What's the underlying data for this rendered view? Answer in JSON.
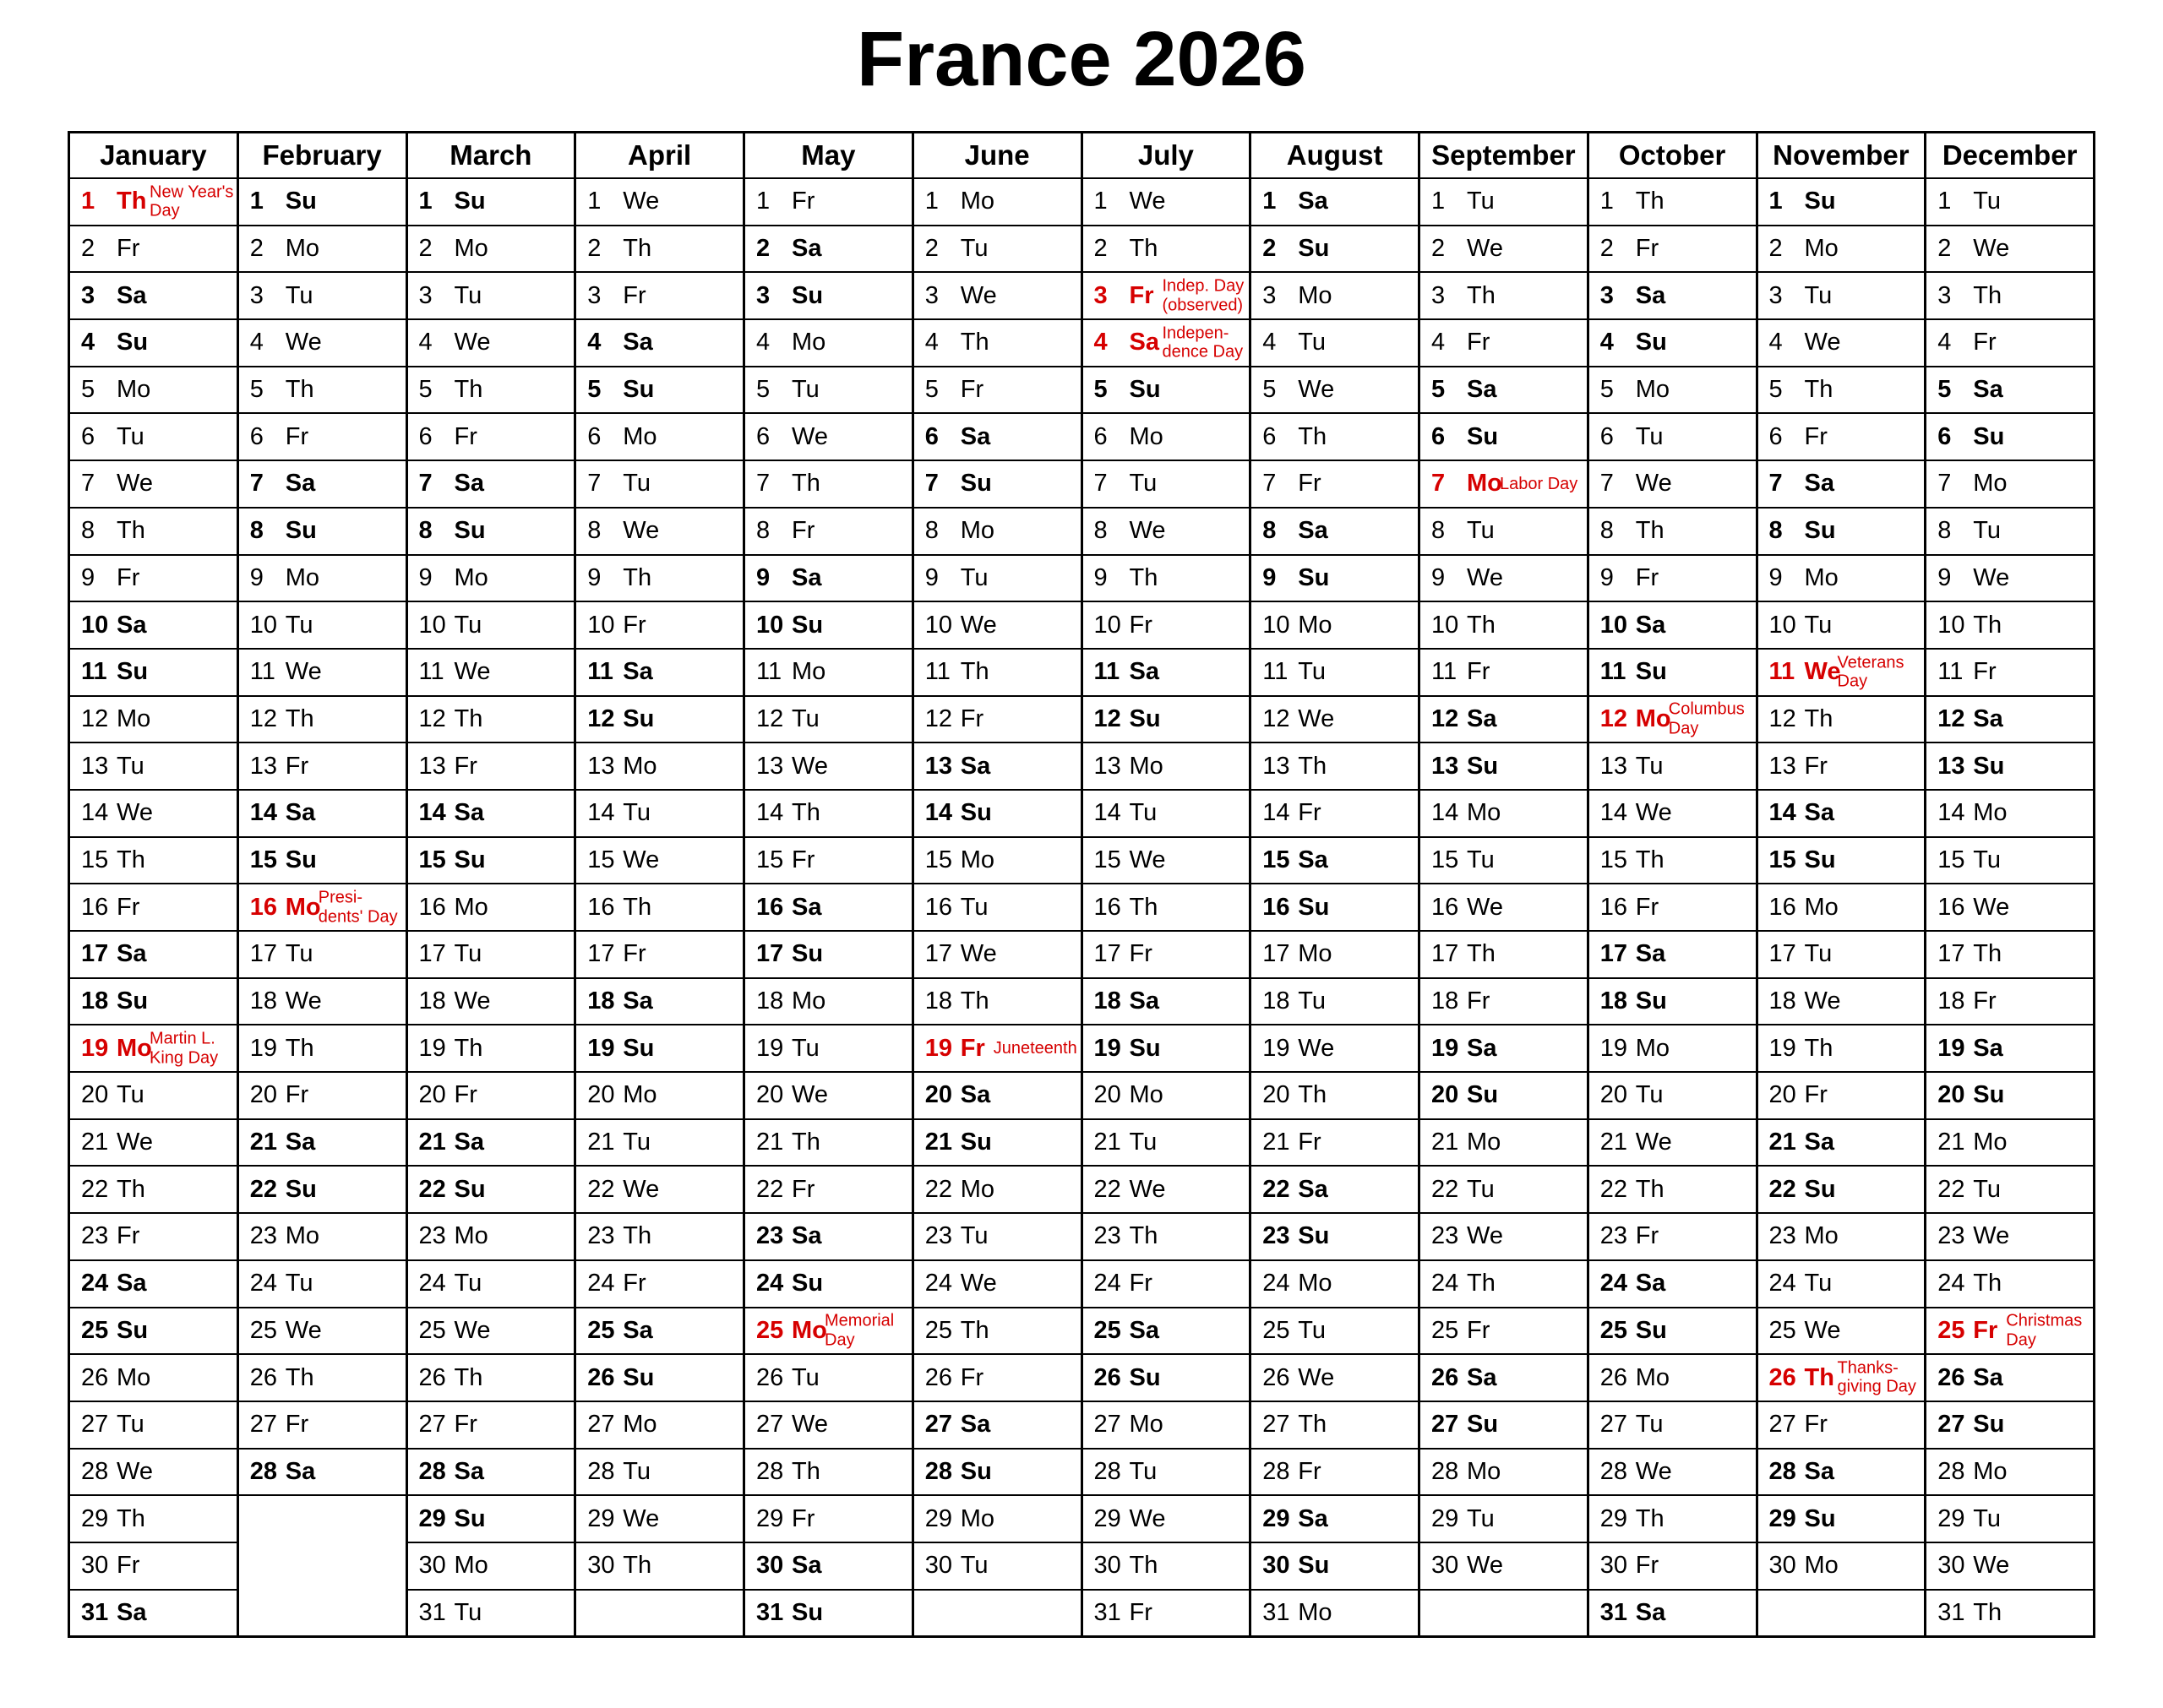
{
  "title": "France 2026",
  "colors": {
    "saturday_bg": "#FCFCCE",
    "sunday_bg": "#F9C389",
    "holiday_bg": "#FBD1D1",
    "holiday_text": "#D60000",
    "filler_bg": "#E1E1E1",
    "border": "#000000",
    "text": "#000000"
  },
  "months": [
    {
      "name": "January",
      "days": [
        "Th",
        "Fr",
        "Sa",
        "Su",
        "Mo",
        "Tu",
        "We",
        "Th",
        "Fr",
        "Sa",
        "Su",
        "Mo",
        "Tu",
        "We",
        "Th",
        "Fr",
        "Sa",
        "Su",
        "Mo",
        "Tu",
        "We",
        "Th",
        "Fr",
        "Sa",
        "Su",
        "Mo",
        "Tu",
        "We",
        "Th",
        "Fr",
        "Sa"
      ],
      "holidays": {
        "1": [
          "New Year's",
          "Day"
        ],
        "19": [
          "Martin L.",
          "King Day"
        ]
      }
    },
    {
      "name": "February",
      "days": [
        "Su",
        "Mo",
        "Tu",
        "We",
        "Th",
        "Fr",
        "Sa",
        "Su",
        "Mo",
        "Tu",
        "We",
        "Th",
        "Fr",
        "Sa",
        "Su",
        "Mo",
        "Tu",
        "We",
        "Th",
        "Fr",
        "Sa",
        "Su",
        "Mo",
        "Tu",
        "We",
        "Th",
        "Fr",
        "Sa"
      ],
      "holidays": {
        "16": [
          "Presi-",
          "dents' Day"
        ]
      }
    },
    {
      "name": "March",
      "days": [
        "Su",
        "Mo",
        "Tu",
        "We",
        "Th",
        "Fr",
        "Sa",
        "Su",
        "Mo",
        "Tu",
        "We",
        "Th",
        "Fr",
        "Sa",
        "Su",
        "Mo",
        "Tu",
        "We",
        "Th",
        "Fr",
        "Sa",
        "Su",
        "Mo",
        "Tu",
        "We",
        "Th",
        "Fr",
        "Sa",
        "Su",
        "Mo",
        "Tu"
      ],
      "holidays": {}
    },
    {
      "name": "April",
      "days": [
        "We",
        "Th",
        "Fr",
        "Sa",
        "Su",
        "Mo",
        "Tu",
        "We",
        "Th",
        "Fr",
        "Sa",
        "Su",
        "Mo",
        "Tu",
        "We",
        "Th",
        "Fr",
        "Sa",
        "Su",
        "Mo",
        "Tu",
        "We",
        "Th",
        "Fr",
        "Sa",
        "Su",
        "Mo",
        "Tu",
        "We",
        "Th"
      ],
      "holidays": {}
    },
    {
      "name": "May",
      "days": [
        "Fr",
        "Sa",
        "Su",
        "Mo",
        "Tu",
        "We",
        "Th",
        "Fr",
        "Sa",
        "Su",
        "Mo",
        "Tu",
        "We",
        "Th",
        "Fr",
        "Sa",
        "Su",
        "Mo",
        "Tu",
        "We",
        "Th",
        "Fr",
        "Sa",
        "Su",
        "Mo",
        "Tu",
        "We",
        "Th",
        "Fr",
        "Sa",
        "Su"
      ],
      "holidays": {
        "25": [
          "Memorial",
          "Day"
        ]
      }
    },
    {
      "name": "June",
      "days": [
        "Mo",
        "Tu",
        "We",
        "Th",
        "Fr",
        "Sa",
        "Su",
        "Mo",
        "Tu",
        "We",
        "Th",
        "Fr",
        "Sa",
        "Su",
        "Mo",
        "Tu",
        "We",
        "Th",
        "Fr",
        "Sa",
        "Su",
        "Mo",
        "Tu",
        "We",
        "Th",
        "Fr",
        "Sa",
        "Su",
        "Mo",
        "Tu"
      ],
      "holidays": {
        "19": [
          "Juneteenth"
        ]
      }
    },
    {
      "name": "July",
      "days": [
        "We",
        "Th",
        "Fr",
        "Sa",
        "Su",
        "Mo",
        "Tu",
        "We",
        "Th",
        "Fr",
        "Sa",
        "Su",
        "Mo",
        "Tu",
        "We",
        "Th",
        "Fr",
        "Sa",
        "Su",
        "Mo",
        "Tu",
        "We",
        "Th",
        "Fr",
        "Sa",
        "Su",
        "Mo",
        "Tu",
        "We",
        "Th",
        "Fr"
      ],
      "holidays": {
        "3": [
          "Indep. Day",
          "(observed)"
        ],
        "4": [
          "Indepen-",
          "dence Day"
        ]
      }
    },
    {
      "name": "August",
      "days": [
        "Sa",
        "Su",
        "Mo",
        "Tu",
        "We",
        "Th",
        "Fr",
        "Sa",
        "Su",
        "Mo",
        "Tu",
        "We",
        "Th",
        "Fr",
        "Sa",
        "Su",
        "Mo",
        "Tu",
        "We",
        "Th",
        "Fr",
        "Sa",
        "Su",
        "Mo",
        "Tu",
        "We",
        "Th",
        "Fr",
        "Sa",
        "Su",
        "Mo"
      ],
      "holidays": {}
    },
    {
      "name": "September",
      "days": [
        "Tu",
        "We",
        "Th",
        "Fr",
        "Sa",
        "Su",
        "Mo",
        "Tu",
        "We",
        "Th",
        "Fr",
        "Sa",
        "Su",
        "Mo",
        "Tu",
        "We",
        "Th",
        "Fr",
        "Sa",
        "Su",
        "Mo",
        "Tu",
        "We",
        "Th",
        "Fr",
        "Sa",
        "Su",
        "Mo",
        "Tu",
        "We"
      ],
      "holidays": {
        "7": [
          "Labor Day"
        ]
      }
    },
    {
      "name": "October",
      "days": [
        "Th",
        "Fr",
        "Sa",
        "Su",
        "Mo",
        "Tu",
        "We",
        "Th",
        "Fr",
        "Sa",
        "Su",
        "Mo",
        "Tu",
        "We",
        "Th",
        "Fr",
        "Sa",
        "Su",
        "Mo",
        "Tu",
        "We",
        "Th",
        "Fr",
        "Sa",
        "Su",
        "Mo",
        "Tu",
        "We",
        "Th",
        "Fr",
        "Sa"
      ],
      "holidays": {
        "12": [
          "Columbus",
          "Day"
        ]
      }
    },
    {
      "name": "November",
      "days": [
        "Su",
        "Mo",
        "Tu",
        "We",
        "Th",
        "Fr",
        "Sa",
        "Su",
        "Mo",
        "Tu",
        "We",
        "Th",
        "Fr",
        "Sa",
        "Su",
        "Mo",
        "Tu",
        "We",
        "Th",
        "Fr",
        "Sa",
        "Su",
        "Mo",
        "Tu",
        "We",
        "Th",
        "Fr",
        "Sa",
        "Su",
        "Mo"
      ],
      "holidays": {
        "11": [
          "Veterans",
          "Day"
        ],
        "26": [
          "Thanks-",
          "giving Day"
        ]
      }
    },
    {
      "name": "December",
      "days": [
        "Tu",
        "We",
        "Th",
        "Fr",
        "Sa",
        "Su",
        "Mo",
        "Tu",
        "We",
        "Th",
        "Fr",
        "Sa",
        "Su",
        "Mo",
        "Tu",
        "We",
        "Th",
        "Fr",
        "Sa",
        "Su",
        "Mo",
        "Tu",
        "We",
        "Th",
        "Fr",
        "Sa",
        "Su",
        "Mo",
        "Tu",
        "We",
        "Th"
      ],
      "holidays": {
        "25": [
          "Christmas",
          "Day"
        ]
      }
    }
  ]
}
